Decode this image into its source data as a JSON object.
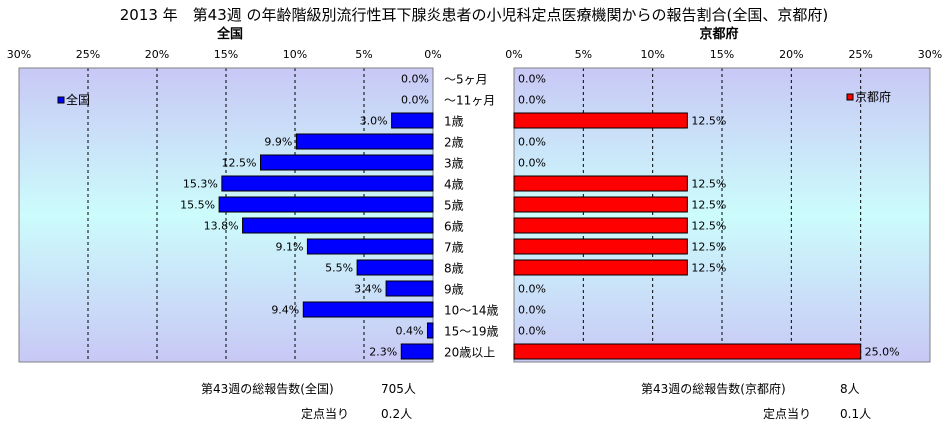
{
  "title": "2013 年　第43週 の年齢階級別流行性耳下腺炎患者の小児科定点医療機関からの報告割合(全国、京都府)",
  "chart_data": {
    "type": "bar",
    "orientation": "horizontal",
    "categories": [
      "～5ヶ月",
      "～11ヶ月",
      "1歳",
      "2歳",
      "3歳",
      "4歳",
      "5歳",
      "6歳",
      "7歳",
      "8歳",
      "9歳",
      "10～14歳",
      "15～19歳",
      "20歳以上"
    ],
    "xlim": [
      0,
      30
    ],
    "ticks": [
      "30%",
      "25%",
      "20%",
      "15%",
      "10%",
      "5%",
      "0%"
    ],
    "ticks_right": [
      "0%",
      "5%",
      "10%",
      "15%",
      "20%",
      "25%",
      "30%"
    ],
    "grid": true,
    "panels": [
      {
        "panel_title": "全国",
        "direction": "leftward",
        "series_name": "全国",
        "legend_position": "top-left",
        "color": "#0000ff",
        "values": [
          0.0,
          0.0,
          3.0,
          9.9,
          12.5,
          15.3,
          15.5,
          13.8,
          9.1,
          5.5,
          3.4,
          9.4,
          0.4,
          2.3
        ],
        "value_labels": [
          "0.0%",
          "0.0%",
          "3.0%",
          "9.9%",
          "12.5%",
          "15.3%",
          "15.5%",
          "13.8%",
          "9.1%",
          "5.5%",
          "3.4%",
          "9.4%",
          "0.4%",
          "2.3%"
        ]
      },
      {
        "panel_title": "京都府",
        "direction": "rightward",
        "series_name": "京都府",
        "legend_position": "top-right",
        "color": "#ff0000",
        "values": [
          0.0,
          0.0,
          12.5,
          0.0,
          0.0,
          12.5,
          12.5,
          12.5,
          12.5,
          12.5,
          0.0,
          0.0,
          0.0,
          25.0
        ],
        "value_labels": [
          "0.0%",
          "0.0%",
          "12.5%",
          "0.0%",
          "0.0%",
          "12.5%",
          "12.5%",
          "12.5%",
          "12.5%",
          "12.5%",
          "0.0%",
          "0.0%",
          "0.0%",
          "25.0%"
        ]
      }
    ]
  },
  "footer": {
    "national_reports_label": "第43週の総報告数(全国)",
    "national_reports_value": "705人",
    "national_per_site_label": "定点当り",
    "national_per_site_value": "0.2人",
    "kyoto_reports_label": "第43週の総報告数(京都府)",
    "kyoto_reports_value": "8人",
    "kyoto_per_site_label": "定点当り",
    "kyoto_per_site_value": "0.1人"
  }
}
